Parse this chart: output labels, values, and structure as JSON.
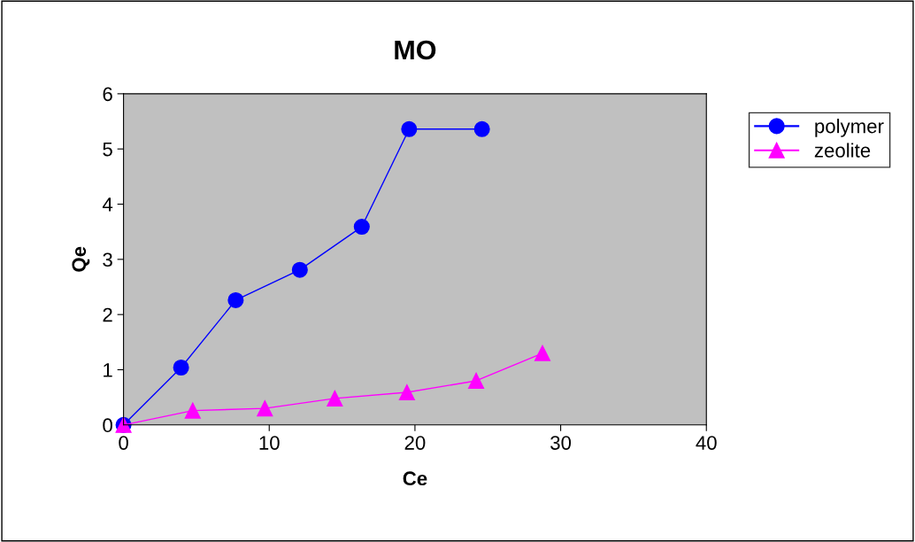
{
  "chart_data": {
    "type": "line",
    "title": "MO",
    "xlabel": "Ce",
    "ylabel": "Qe",
    "xlim": [
      0,
      40
    ],
    "xticks": [
      0,
      10,
      20,
      30,
      40
    ],
    "ylim": [
      0,
      6
    ],
    "yticks": [
      0,
      1,
      2,
      3,
      4,
      5,
      6
    ],
    "grid": false,
    "legend": "right",
    "line_style": "solid",
    "series": [
      {
        "name": "polymer",
        "color": "#0000ff",
        "marker": "circle",
        "x": [
          0,
          3.95,
          7.7,
          12.1,
          16.35,
          19.6,
          24.6
        ],
        "values": [
          0,
          1.04,
          2.26,
          2.81,
          3.59,
          5.36,
          5.36
        ]
      },
      {
        "name": "zeolite",
        "color": "#ff00ff",
        "marker": "triangle",
        "x": [
          0,
          4.75,
          9.7,
          14.5,
          19.45,
          24.2,
          28.75
        ],
        "values": [
          0,
          0.26,
          0.3,
          0.48,
          0.59,
          0.8,
          1.3
        ]
      }
    ]
  }
}
